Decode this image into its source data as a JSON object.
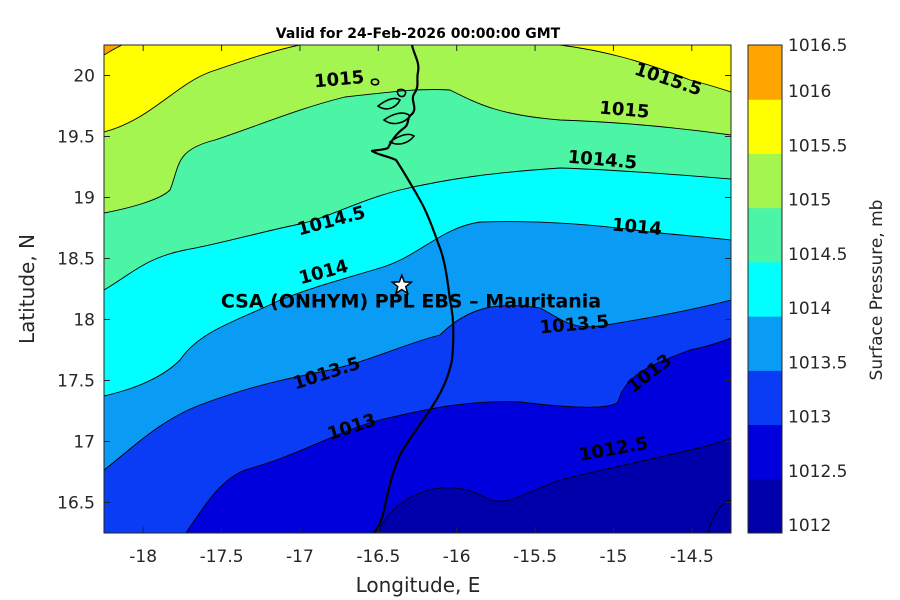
{
  "title": "Valid for 24-Feb-2026 00:00:00 GMT",
  "map": {
    "xlabel": "Longitude, E",
    "ylabel": "Latitude, N",
    "xlim": [
      -18.25,
      -14.25
    ],
    "ylim": [
      16.25,
      20.25
    ],
    "xticks": [
      -18,
      -17.5,
      -17,
      -16.5,
      -16,
      -15.5,
      -15,
      -14.5
    ],
    "yticks": [
      16.5,
      17,
      17.5,
      18,
      18.5,
      19,
      19.5,
      20
    ]
  },
  "site": {
    "label": "CSA (ONHYM) PPL EBS  – Mauritania",
    "lon": -16.35,
    "lat": 18.28
  },
  "colorbar": {
    "label": "Surface Pressure, mb",
    "levels": [
      1012,
      1012.5,
      1013,
      1013.5,
      1014,
      1014.5,
      1015,
      1015.5,
      1016,
      1016.5
    ],
    "tick_labels": [
      "1012",
      "1012.5",
      "1013",
      "1013.5",
      "1014",
      "1014.5",
      "1015",
      "1015.5",
      "1016",
      "1016.5"
    ],
    "colors": [
      "#0000AA",
      "#0000DD",
      "#0A3CF5",
      "#0A9BF5",
      "#00FFFF",
      "#4CF5A5",
      "#A5F550",
      "#FFFF00",
      "#FFA500",
      "#FF5500"
    ]
  },
  "contour_labels": [
    {
      "text": "1015",
      "lon": -16.75,
      "lat": 19.97,
      "angle": -5
    },
    {
      "text": "1015.5",
      "lon": -14.65,
      "lat": 19.97,
      "angle": 18
    },
    {
      "text": "1015",
      "lon": -14.93,
      "lat": 19.72,
      "angle": 5
    },
    {
      "text": "1014.5",
      "lon": -15.07,
      "lat": 19.31,
      "angle": 5
    },
    {
      "text": "1014.5",
      "lon": -16.8,
      "lat": 18.81,
      "angle": -15
    },
    {
      "text": "1014",
      "lon": -14.85,
      "lat": 18.76,
      "angle": 5
    },
    {
      "text": "1014",
      "lon": -16.85,
      "lat": 18.39,
      "angle": -15
    },
    {
      "text": "1013.5",
      "lon": -15.25,
      "lat": 17.96,
      "angle": -5
    },
    {
      "text": "1013.5",
      "lon": -16.83,
      "lat": 17.56,
      "angle": -18
    },
    {
      "text": "1013",
      "lon": -14.77,
      "lat": 17.56,
      "angle": -38
    },
    {
      "text": "1013",
      "lon": -16.67,
      "lat": 17.12,
      "angle": -18
    },
    {
      "text": "1012.5",
      "lon": -15.0,
      "lat": 16.94,
      "angle": -10
    }
  ]
}
